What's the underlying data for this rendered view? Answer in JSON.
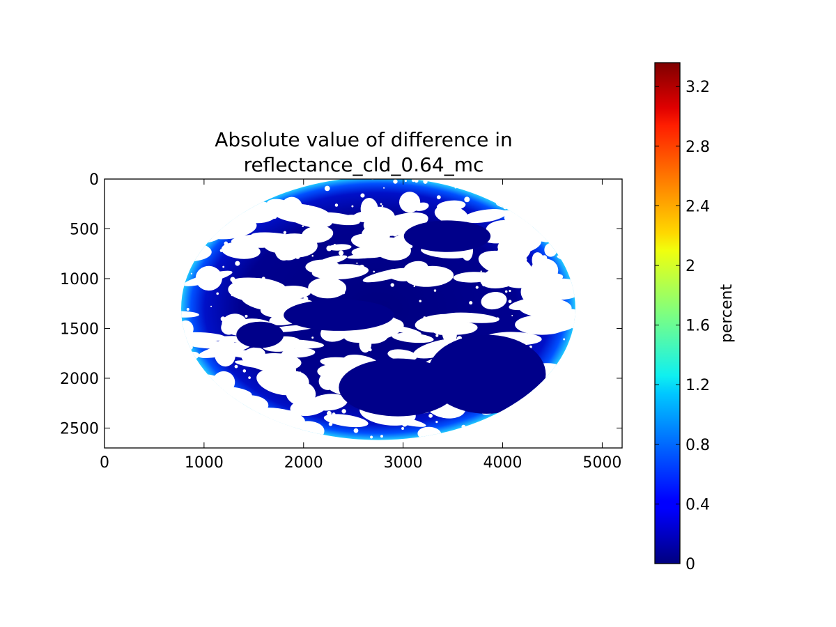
{
  "chart_data": {
    "type": "heatmap",
    "title_lines": [
      "Absolute value of difference in",
      "reflectance_cld_0.64_mc"
    ],
    "xlabel": "",
    "ylabel": "",
    "xlim": [
      0,
      5200
    ],
    "ylim": [
      2700,
      0
    ],
    "y_axis_inverted": true,
    "x_ticks": [
      "0",
      "1000",
      "2000",
      "3000",
      "4000",
      "5000"
    ],
    "x_tick_values": [
      0,
      1000,
      2000,
      3000,
      4000,
      5000
    ],
    "y_ticks": [
      "0",
      "500",
      "1000",
      "1500",
      "2000",
      "2500"
    ],
    "y_tick_values": [
      0,
      500,
      1000,
      1500,
      2000,
      2500
    ],
    "grid": false,
    "colormap": "jet",
    "colorbar": {
      "label": "percent",
      "range": [
        0,
        3.36
      ],
      "ticks": [
        "0",
        "0.4",
        "0.8",
        "1.2",
        "1.6",
        "2",
        "2.4",
        "2.8",
        "3.2"
      ],
      "tick_values": [
        0,
        0.4,
        0.8,
        1.2,
        1.6,
        2.0,
        2.4,
        2.8,
        3.2
      ]
    },
    "image_description_values": {
      "disk_center": [
        2750,
        1300
      ],
      "disk_half_width": 1980,
      "disk_half_height": 1320,
      "dominant_value": 0.05,
      "limb_value_max": 1.4,
      "cloud_mask": "white (no data)"
    }
  }
}
